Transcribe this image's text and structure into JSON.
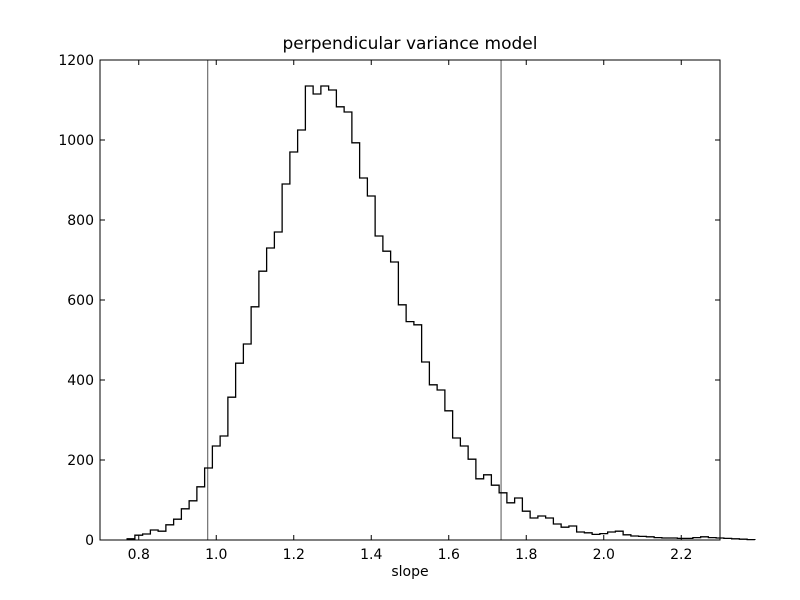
{
  "chart_data": {
    "type": "histogram",
    "title": "perpendicular variance model",
    "xlabel": "slope",
    "ylabel": "",
    "xlim": [
      0.7,
      2.3
    ],
    "ylim": [
      0,
      1200
    ],
    "xticks": [
      0.8,
      1.0,
      1.2,
      1.4,
      1.6,
      1.8,
      2.0,
      2.2
    ],
    "xtick_labels": [
      "0.8",
      "1.0",
      "1.2",
      "1.4",
      "1.6",
      "1.8",
      "2.0",
      "2.2"
    ],
    "yticks": [
      0,
      200,
      400,
      600,
      800,
      1000,
      1200
    ],
    "ytick_labels": [
      "0",
      "200",
      "400",
      "600",
      "800",
      "1000",
      "1200"
    ],
    "grid": false,
    "vertical_lines": [
      0.978,
      1.735
    ],
    "bin_start": 0.77,
    "bin_width": 0.02,
    "counts": [
      3,
      12,
      15,
      25,
      22,
      38,
      52,
      78,
      98,
      133,
      180,
      235,
      260,
      357,
      442,
      490,
      583,
      672,
      730,
      770,
      890,
      970,
      1025,
      1135,
      1115,
      1135,
      1125,
      1083,
      1070,
      993,
      905,
      860,
      760,
      722,
      695,
      588,
      546,
      538,
      445,
      388,
      375,
      323,
      255,
      235,
      202,
      153,
      163,
      137,
      118,
      93,
      105,
      72,
      55,
      60,
      55,
      40,
      32,
      35,
      20,
      18,
      14,
      16,
      20,
      22,
      13,
      10,
      9,
      8,
      6,
      5,
      5,
      4,
      4,
      6,
      8,
      6,
      5,
      4,
      3,
      2,
      1
    ]
  }
}
